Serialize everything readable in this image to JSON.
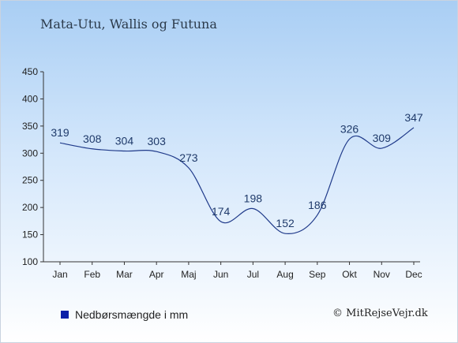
{
  "header": {
    "title": "Mata-Utu, Wallis og Futuna"
  },
  "legend": {
    "label": "Nedbørsmængde i mm",
    "color": "#0b1fa8"
  },
  "credit": {
    "text": "© MitRejseVejr.dk"
  },
  "chart_data": {
    "type": "line",
    "title": "Mata-Utu, Wallis og Futuna",
    "xlabel": "",
    "ylabel": "",
    "categories": [
      "Jan",
      "Feb",
      "Mar",
      "Apr",
      "Maj",
      "Jun",
      "Jul",
      "Aug",
      "Sep",
      "Okt",
      "Nov",
      "Dec"
    ],
    "series": [
      {
        "name": "Nedbørsmængde i mm",
        "values": [
          319,
          308,
          304,
          303,
          273,
          174,
          198,
          152,
          186,
          326,
          309,
          347
        ],
        "color": "#1f3a8a"
      }
    ],
    "ylim": [
      100,
      450
    ],
    "yticks": [
      100,
      150,
      200,
      250,
      300,
      350,
      400,
      450
    ],
    "grid": false,
    "legend_position": "bottom-left"
  }
}
